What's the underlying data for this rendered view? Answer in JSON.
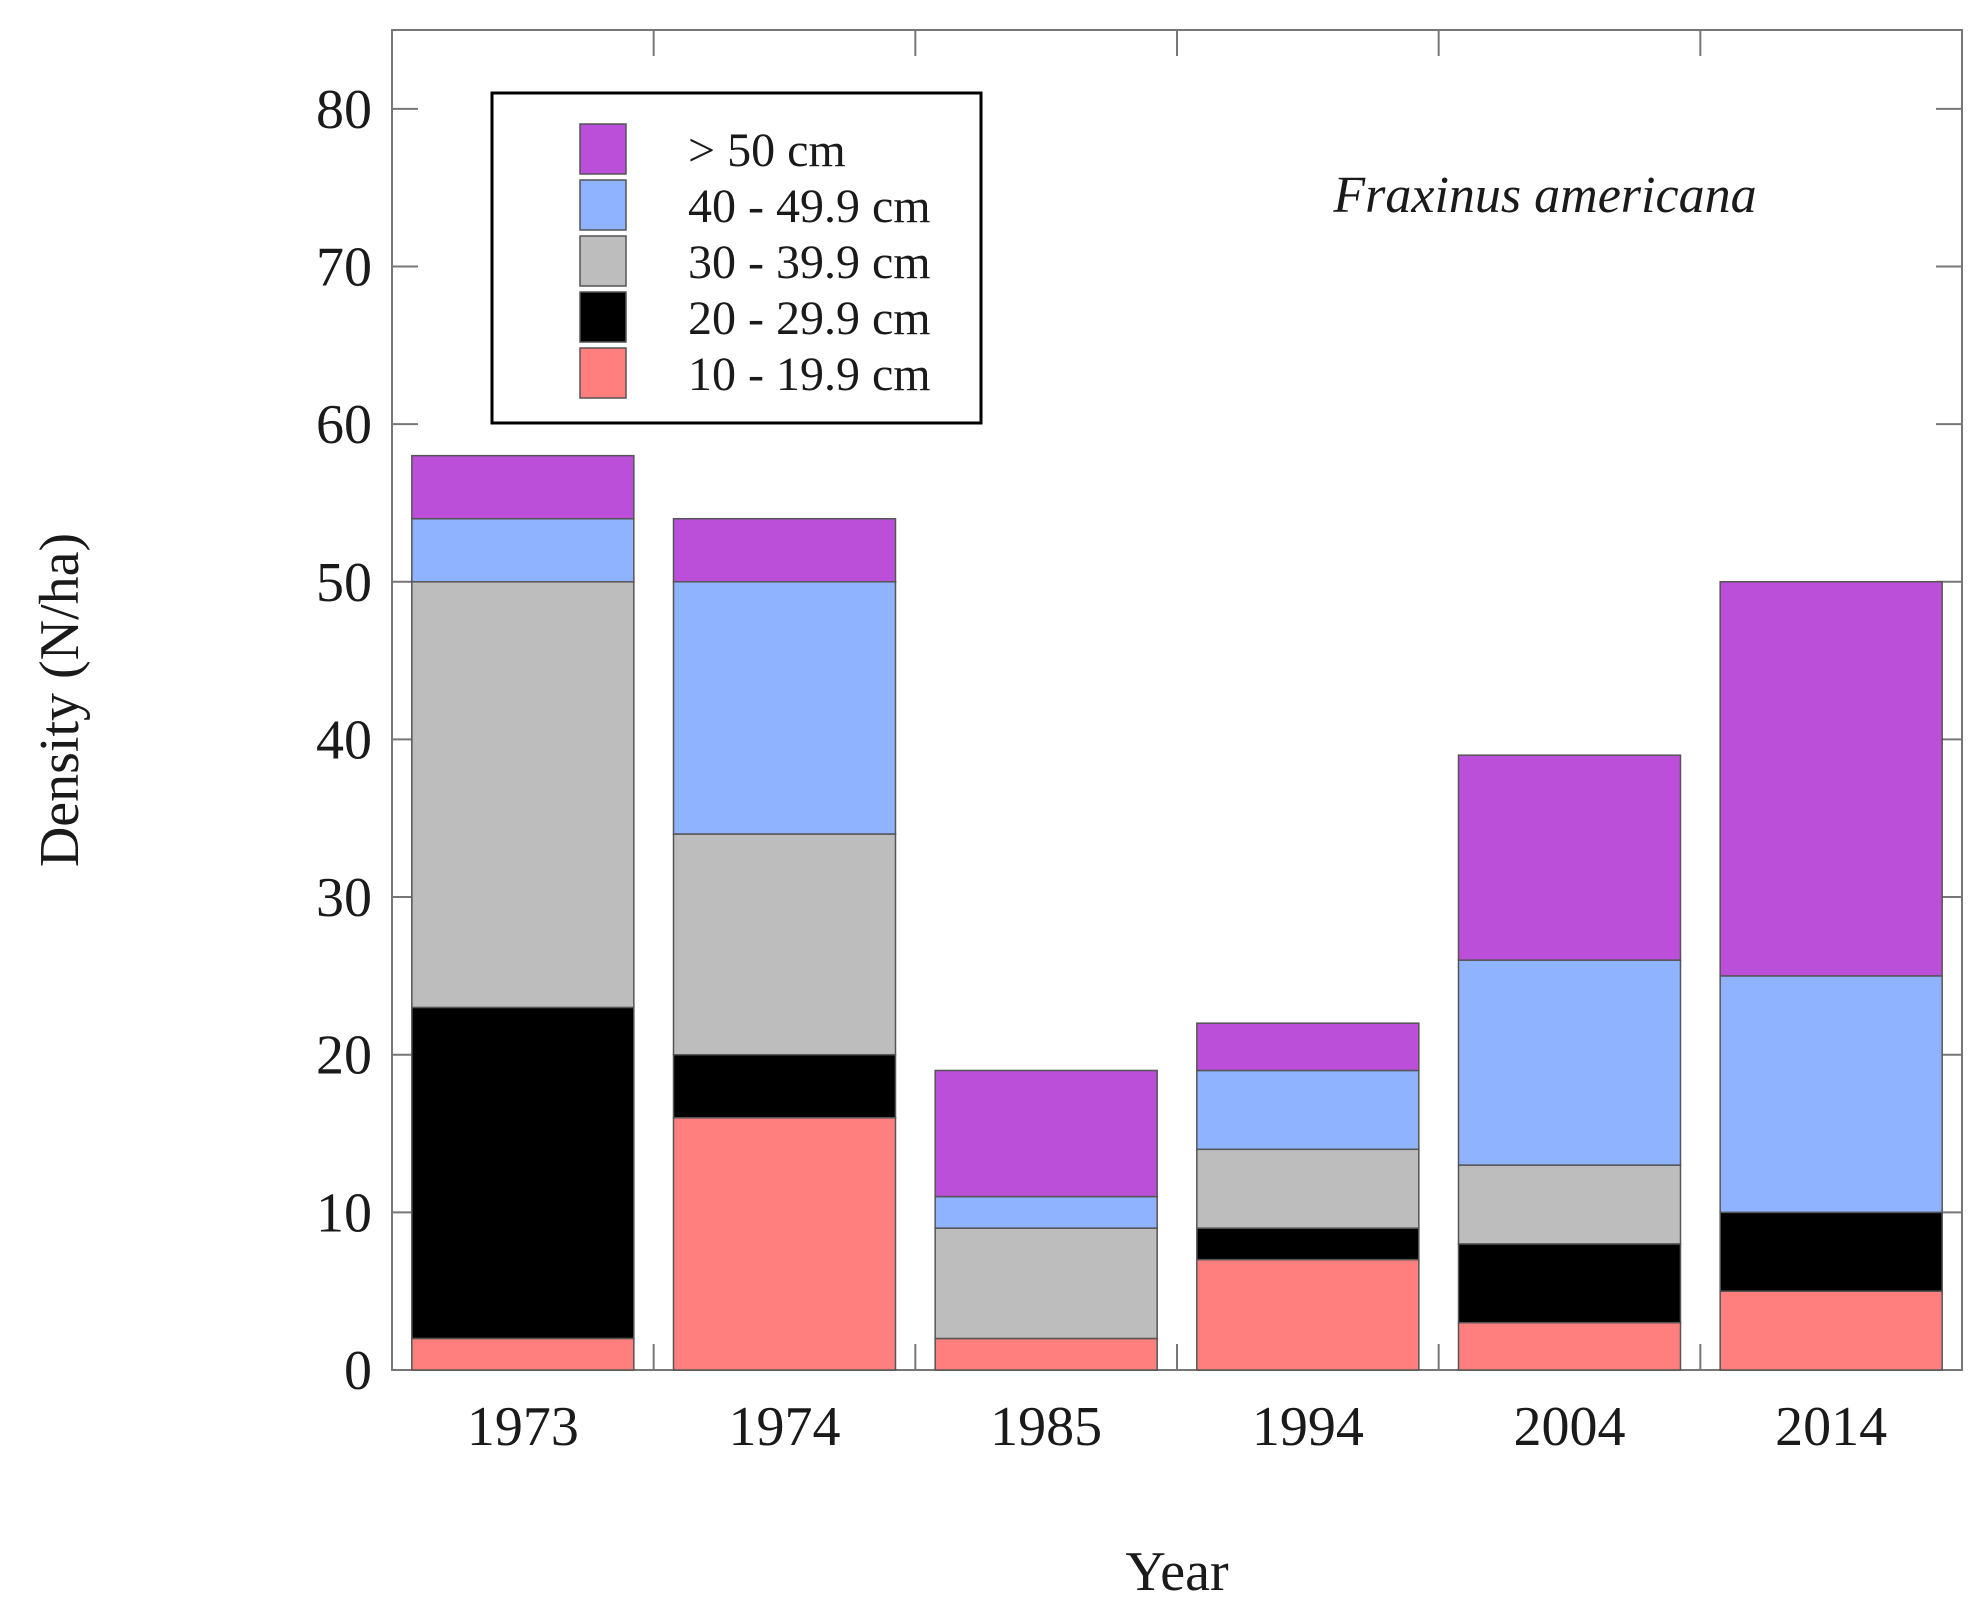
{
  "chart_data": {
    "type": "bar",
    "stacked": true,
    "categories": [
      "1973",
      "1974",
      "1985",
      "1994",
      "2004",
      "2014"
    ],
    "series": [
      {
        "name": "10 - 19.9 cm",
        "color": "#ff7f7f",
        "values": [
          2,
          16,
          2,
          7,
          3,
          5
        ]
      },
      {
        "name": "20 - 29.9 cm",
        "color": "#000000",
        "values": [
          21,
          4,
          0,
          2,
          5,
          5
        ]
      },
      {
        "name": "30 - 39.9 cm",
        "color": "#bdbdbd",
        "values": [
          27,
          14,
          7,
          5,
          5,
          0
        ]
      },
      {
        "name": "40 - 49.9 cm",
        "color": "#8fb3ff",
        "values": [
          4,
          16,
          2,
          5,
          13,
          15
        ]
      },
      {
        "name": "> 50 cm",
        "color": "#bb4fd9",
        "values": [
          4,
          4,
          8,
          3,
          13,
          25
        ]
      }
    ],
    "legend_order": [
      "> 50 cm",
      "40 - 49.9 cm",
      "30 - 39.9 cm",
      "20 - 29.9 cm",
      "10 - 19.9 cm"
    ],
    "legend_position": "top-left",
    "annotation": "Fraxinus americana",
    "xlabel": "Year",
    "ylabel": "Density (N/ha)",
    "ylim": [
      0,
      85
    ],
    "yticks": [
      0,
      10,
      20,
      30,
      40,
      50,
      60,
      70,
      80
    ],
    "grid": false
  }
}
